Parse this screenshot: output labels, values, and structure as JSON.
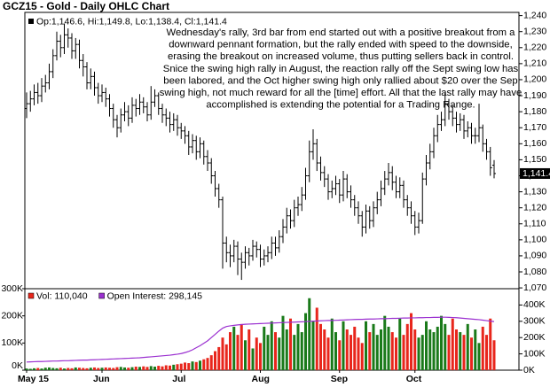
{
  "chart_data": [
    {
      "type": "ohlc",
      "title": "GCZ15 - Gold - Daily OHLC Chart",
      "annotation_lines": [
        "Wednesday's rally, 3rd bar from end started out with a positive breakout from a",
        "downward pennant formation, but the rally ended with speed to the downside,",
        "erasing the breakout on increased volume, thus putting sellers back in control.",
        "Snice the swing high rally in August, the reaction rally off the Sept swing low has",
        "been labored, and the Oct higher swing high only rallied about $20 over the Sep",
        "swing high, not much reward for all the [time] effort.  All that the last rally may have",
        "accomplished is extending the potential for a Trading Range."
      ],
      "last_price_label": "1,141.4",
      "ylim": [
        1069.5,
        1242
      ],
      "yticks": [
        {
          "value": 1070,
          "label": "1,070"
        },
        {
          "value": 1080,
          "label": "1,080"
        },
        {
          "value": 1090,
          "label": "1,090"
        },
        {
          "value": 1100,
          "label": "1,100"
        },
        {
          "value": 1110,
          "label": "1,110"
        },
        {
          "value": 1120,
          "label": "1,120"
        },
        {
          "value": 1130,
          "label": "1,130"
        },
        {
          "value": 1140,
          "label": "1,140"
        },
        {
          "value": 1150,
          "label": "1,150"
        },
        {
          "value": 1160,
          "label": "1,160"
        },
        {
          "value": 1170,
          "label": "1,170"
        },
        {
          "value": 1180,
          "label": "1,180"
        },
        {
          "value": 1190,
          "label": "1,190"
        },
        {
          "value": 1200,
          "label": "1,200"
        },
        {
          "value": 1210,
          "label": "1,210"
        },
        {
          "value": 1220,
          "label": "1,220"
        },
        {
          "value": 1230,
          "label": "1,230"
        },
        {
          "value": 1240,
          "label": "1,240"
        }
      ],
      "series": [
        {
          "name": "Op:1,146.6, Hi:1,149.8, Lo:1,138.4, Cl:1,141.4",
          "color": "#000000",
          "open": [
            1182,
            1185,
            1188,
            1192,
            1190,
            1196,
            1198,
            1205,
            1215,
            1224,
            1220,
            1228,
            1226,
            1218,
            1222,
            1212,
            1208,
            1198,
            1202,
            1195,
            1190,
            1192,
            1188,
            1182,
            1175,
            1170,
            1178,
            1180,
            1176,
            1184,
            1182,
            1186,
            1183,
            1178,
            1186,
            1190,
            1182,
            1178,
            1176,
            1172,
            1175,
            1170,
            1168,
            1165,
            1158,
            1162,
            1155,
            1160,
            1152,
            1148,
            1140,
            1132,
            1125,
            1098,
            1092,
            1090,
            1096,
            1088,
            1086,
            1092,
            1090,
            1096,
            1094,
            1088,
            1090,
            1092,
            1098,
            1095,
            1102,
            1108,
            1115,
            1112,
            1120,
            1122,
            1128,
            1140,
            1155,
            1160,
            1148,
            1142,
            1138,
            1130,
            1132,
            1135,
            1128,
            1138,
            1130,
            1125,
            1120,
            1115,
            1108,
            1118,
            1112,
            1120,
            1125,
            1132,
            1138,
            1142,
            1136,
            1130,
            1134,
            1125,
            1120,
            1115,
            1108,
            1112,
            1138,
            1148,
            1155,
            1165,
            1172,
            1175,
            1185,
            1180,
            1176,
            1172,
            1175,
            1168,
            1170,
            1165,
            1165,
            1170,
            1160,
            1155,
            1146.6
          ],
          "high": [
            1192,
            1193,
            1197,
            1198,
            1201,
            1203,
            1210,
            1219,
            1230,
            1228,
            1235,
            1232,
            1229,
            1226,
            1225,
            1216,
            1211,
            1207,
            1205,
            1198,
            1197,
            1195,
            1191,
            1185,
            1178,
            1182,
            1186,
            1184,
            1189,
            1188,
            1191,
            1189,
            1186,
            1196,
            1194,
            1192,
            1185,
            1182,
            1180,
            1179,
            1178,
            1173,
            1171,
            1168,
            1166,
            1165,
            1164,
            1162,
            1156,
            1151,
            1143,
            1135,
            1127,
            1102,
            1097,
            1100,
            1099,
            1092,
            1096,
            1095,
            1100,
            1099,
            1097,
            1094,
            1096,
            1102,
            1102,
            1106,
            1113,
            1120,
            1119,
            1125,
            1127,
            1133,
            1145,
            1162,
            1169,
            1163,
            1152,
            1146,
            1141,
            1137,
            1140,
            1138,
            1143,
            1141,
            1134,
            1128,
            1124,
            1118,
            1122,
            1121,
            1124,
            1130,
            1137,
            1143,
            1148,
            1146,
            1140,
            1139,
            1137,
            1128,
            1124,
            1118,
            1117,
            1142,
            1153,
            1160,
            1170,
            1178,
            1180,
            1192,
            1188,
            1184,
            1180,
            1179,
            1178,
            1174,
            1173,
            1170,
            1185,
            1172,
            1163,
            1158,
            1149.8
          ],
          "low": [
            1176,
            1180,
            1184,
            1185,
            1186,
            1192,
            1194,
            1201,
            1212,
            1214,
            1216,
            1220,
            1213,
            1213,
            1207,
            1202,
            1194,
            1194,
            1190,
            1185,
            1186,
            1183,
            1177,
            1170,
            1164,
            1167,
            1174,
            1171,
            1173,
            1177,
            1178,
            1179,
            1174,
            1175,
            1183,
            1178,
            1173,
            1171,
            1167,
            1168,
            1165,
            1163,
            1160,
            1153,
            1154,
            1150,
            1151,
            1147,
            1143,
            1135,
            1127,
            1120,
            1082,
            1086,
            1083,
            1086,
            1078,
            1075,
            1082,
            1084,
            1087,
            1089,
            1083,
            1084,
            1086,
            1088,
            1090,
            1092,
            1098,
            1104,
            1107,
            1108,
            1115,
            1118,
            1125,
            1136,
            1150,
            1143,
            1137,
            1133,
            1125,
            1126,
            1128,
            1123,
            1124,
            1126,
            1120,
            1115,
            1110,
            1102,
            1104,
            1107,
            1108,
            1116,
            1121,
            1128,
            1134,
            1131,
            1126,
            1126,
            1120,
            1115,
            1110,
            1103,
            1104,
            1110,
            1134,
            1144,
            1151,
            1161,
            1168,
            1171,
            1175,
            1171,
            1167,
            1168,
            1163,
            1164,
            1160,
            1160,
            1161,
            1155,
            1150,
            1140,
            1138.4
          ],
          "close": [
            1185,
            1188,
            1192,
            1190,
            1196,
            1198,
            1205,
            1215,
            1224,
            1220,
            1228,
            1226,
            1218,
            1222,
            1212,
            1208,
            1198,
            1202,
            1195,
            1190,
            1192,
            1188,
            1182,
            1175,
            1170,
            1178,
            1180,
            1176,
            1184,
            1182,
            1186,
            1183,
            1178,
            1186,
            1190,
            1182,
            1178,
            1176,
            1172,
            1175,
            1170,
            1168,
            1165,
            1158,
            1162,
            1155,
            1160,
            1152,
            1148,
            1140,
            1132,
            1125,
            1098,
            1092,
            1090,
            1096,
            1088,
            1086,
            1092,
            1090,
            1096,
            1094,
            1088,
            1090,
            1092,
            1098,
            1095,
            1102,
            1108,
            1115,
            1112,
            1120,
            1122,
            1128,
            1140,
            1155,
            1160,
            1148,
            1142,
            1138,
            1130,
            1132,
            1135,
            1128,
            1138,
            1130,
            1125,
            1120,
            1115,
            1108,
            1118,
            1112,
            1120,
            1125,
            1132,
            1138,
            1142,
            1136,
            1130,
            1134,
            1125,
            1120,
            1115,
            1108,
            1112,
            1138,
            1148,
            1155,
            1165,
            1172,
            1175,
            1185,
            1180,
            1176,
            1172,
            1175,
            1168,
            1170,
            1165,
            1165,
            1170,
            1160,
            1155,
            1145,
            1141.4
          ]
        }
      ]
    },
    {
      "type": "bar",
      "categories": [
        "May 15",
        null,
        null,
        null,
        null,
        null,
        null,
        null,
        null,
        null,
        null,
        null,
        null,
        null,
        null,
        null,
        null,
        null,
        null,
        null,
        "Jun",
        null,
        null,
        null,
        null,
        null,
        null,
        null,
        null,
        null,
        null,
        null,
        null,
        null,
        null,
        null,
        null,
        null,
        null,
        null,
        null,
        "Jul",
        null,
        null,
        null,
        null,
        null,
        null,
        null,
        null,
        null,
        null,
        null,
        null,
        null,
        null,
        null,
        null,
        null,
        null,
        null,
        null,
        "Aug",
        null,
        null,
        null,
        null,
        null,
        null,
        null,
        null,
        null,
        null,
        null,
        null,
        null,
        null,
        null,
        null,
        null,
        null,
        null,
        null,
        "Sep",
        null,
        null,
        null,
        null,
        null,
        null,
        null,
        null,
        null,
        null,
        null,
        null,
        null,
        null,
        null,
        null,
        null,
        null,
        null,
        "Oct",
        null,
        null,
        null,
        null,
        null,
        null,
        null,
        null,
        null,
        null,
        null,
        null,
        null,
        null,
        null,
        null,
        null,
        null,
        null,
        null,
        null
      ],
      "ylim": [
        0,
        300000
      ],
      "yticks": [
        {
          "value": 0,
          "label": "0K"
        },
        {
          "value": 100000,
          "label": "100K"
        },
        {
          "value": 200000,
          "label": "200K"
        },
        {
          "value": 300000,
          "label": "300K"
        }
      ],
      "y2lim": [
        0,
        500000
      ],
      "y2ticks": [
        {
          "value": 0,
          "label": "0K"
        },
        {
          "value": 100000,
          "label": "100K"
        },
        {
          "value": 200000,
          "label": "200K"
        },
        {
          "value": 300000,
          "label": "300K"
        },
        {
          "value": 400000,
          "label": "400K"
        }
      ],
      "series": [
        {
          "name": "Vol: 110,040",
          "color": "#e8261c",
          "up_color": "#1a7a1a",
          "down_color": "#e8261c",
          "values": [
            6000,
            5000,
            7000,
            8000,
            6000,
            9000,
            10000,
            8000,
            7000,
            9000,
            6000,
            8000,
            7000,
            10000,
            9000,
            8000,
            7000,
            9000,
            10000,
            8000,
            9000,
            10000,
            9000,
            8000,
            11000,
            12000,
            10000,
            9000,
            11000,
            13000,
            12000,
            14000,
            12000,
            15000,
            13000,
            16000,
            14000,
            18000,
            17000,
            20000,
            22000,
            24000,
            28000,
            26000,
            32000,
            30000,
            35000,
            40000,
            45000,
            55000,
            70000,
            85000,
            120000,
            95000,
            140000,
            160000,
            130000,
            170000,
            110000,
            150000,
            80000,
            120000,
            100000,
            160000,
            130000,
            180000,
            140000,
            120000,
            200000,
            150000,
            190000,
            130000,
            170000,
            140000,
            210000,
            265000,
            180000,
            230000,
            170000,
            150000,
            120000,
            190000,
            140000,
            110000,
            180000,
            150000,
            130000,
            160000,
            120000,
            100000,
            180000,
            140000,
            170000,
            130000,
            150000,
            200000,
            160000,
            140000,
            120000,
            190000,
            130000,
            170000,
            210000,
            150000,
            120000,
            130000,
            180000,
            150000,
            140000,
            160000,
            200000,
            170000,
            130000,
            190000,
            150000,
            140000,
            130000,
            170000,
            120000,
            150000,
            100000,
            160000,
            130000,
            190000,
            110040
          ]
        },
        {
          "name": "Open Interest: 298,145",
          "color": "#9b30d0",
          "axis": "y2",
          "values": [
            50000,
            51000,
            52000,
            53000,
            53000,
            54000,
            55000,
            56000,
            56000,
            57000,
            58000,
            58000,
            59000,
            60000,
            61000,
            62000,
            62000,
            63000,
            64000,
            65000,
            66000,
            67000,
            68000,
            69000,
            70000,
            71000,
            72000,
            73000,
            74000,
            75000,
            76000,
            78000,
            80000,
            82000,
            84000,
            86000,
            88000,
            90000,
            92000,
            95000,
            98000,
            102000,
            108000,
            115000,
            125000,
            138000,
            150000,
            165000,
            180000,
            200000,
            220000,
            240000,
            258000,
            268000,
            272000,
            275000,
            278000,
            280000,
            282000,
            283000,
            284000,
            285000,
            286000,
            287000,
            288000,
            289000,
            290000,
            291000,
            292000,
            293000,
            294000,
            295000,
            296000,
            297000,
            298000,
            300000,
            301000,
            302000,
            303000,
            304000,
            305000,
            305000,
            306000,
            307000,
            308000,
            309000,
            310000,
            311000,
            312000,
            312000,
            313000,
            314000,
            314000,
            315000,
            316000,
            316000,
            317000,
            318000,
            318000,
            319000,
            320000,
            320000,
            321000,
            321000,
            322000,
            322000,
            323000,
            323000,
            324000,
            324000,
            325000,
            325000,
            324000,
            323000,
            322000,
            320000,
            318000,
            316000,
            314000,
            312000,
            310000,
            307000,
            304000,
            301000,
            298145
          ]
        }
      ]
    }
  ]
}
